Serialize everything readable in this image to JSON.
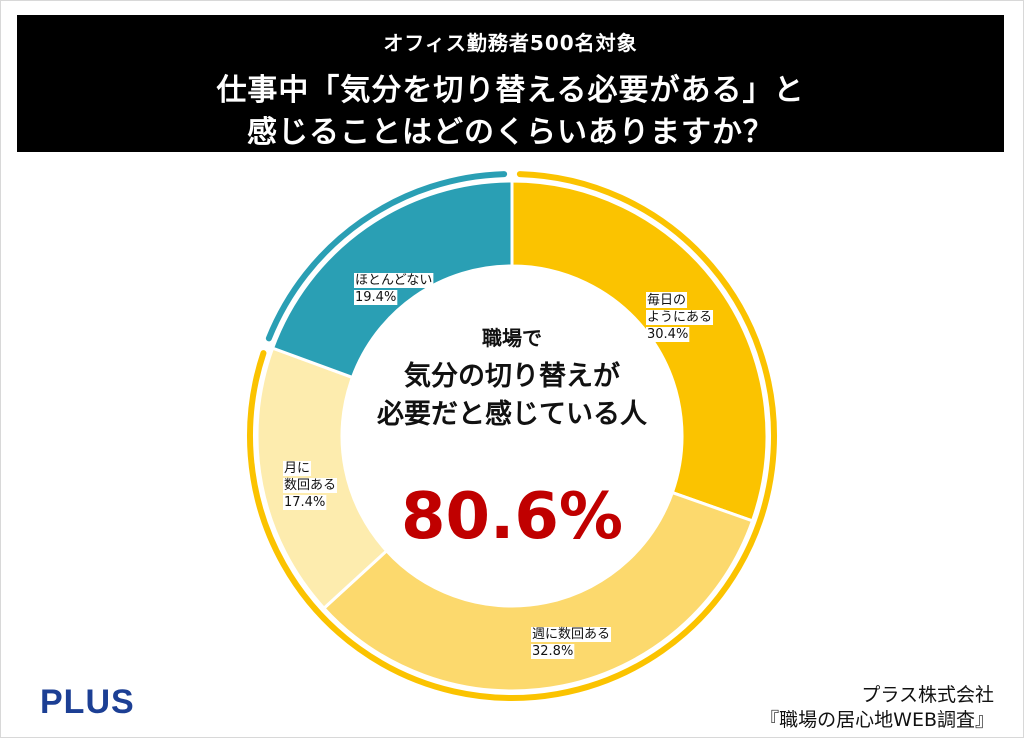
{
  "header": {
    "subtitle": "オフィス勤務者500名対象",
    "title_line1": "仕事中「気分を切り替える必要がある」と",
    "title_line2": "感じることはどのくらいありますか？"
  },
  "center": {
    "line1": "職場で",
    "line2": "気分の切り替えが",
    "line3": "必要だと感じている人",
    "percent": "80.6%"
  },
  "chart_data": {
    "type": "pie",
    "style": "donut",
    "title": "仕事中「気分を切り替える必要がある」と感じることはどのくらいありますか？",
    "unit": "%",
    "slices": [
      {
        "label": "毎日のようにある",
        "value": 30.4,
        "color": "#fbc300",
        "label_lines": [
          "毎日の",
          "ようにある",
          "30.4%"
        ]
      },
      {
        "label": "週に数回ある",
        "value": 32.8,
        "color": "#fcd96d",
        "label_lines": [
          "週に数回ある",
          "32.8%"
        ]
      },
      {
        "label": "月に数回ある",
        "value": 17.4,
        "color": "#fdecae",
        "label_lines": [
          "月に",
          "数回ある",
          "17.4%"
        ]
      },
      {
        "label": "ほとんどない",
        "value": 19.4,
        "color": "#2a9fb4",
        "label_lines": [
          "ほとんどない",
          "19.4%"
        ]
      }
    ],
    "highlight": {
      "label": "気分の切り替えが必要だと感じている人",
      "value": 80.6
    },
    "outer_ring_colors": {
      "needed": "#fbc300",
      "not_needed": "#2a9fb4"
    }
  },
  "footer": {
    "logo": "PLUS",
    "credit_line1": "プラス株式会社",
    "credit_line2": "『職場の居心地WEB調査』"
  }
}
